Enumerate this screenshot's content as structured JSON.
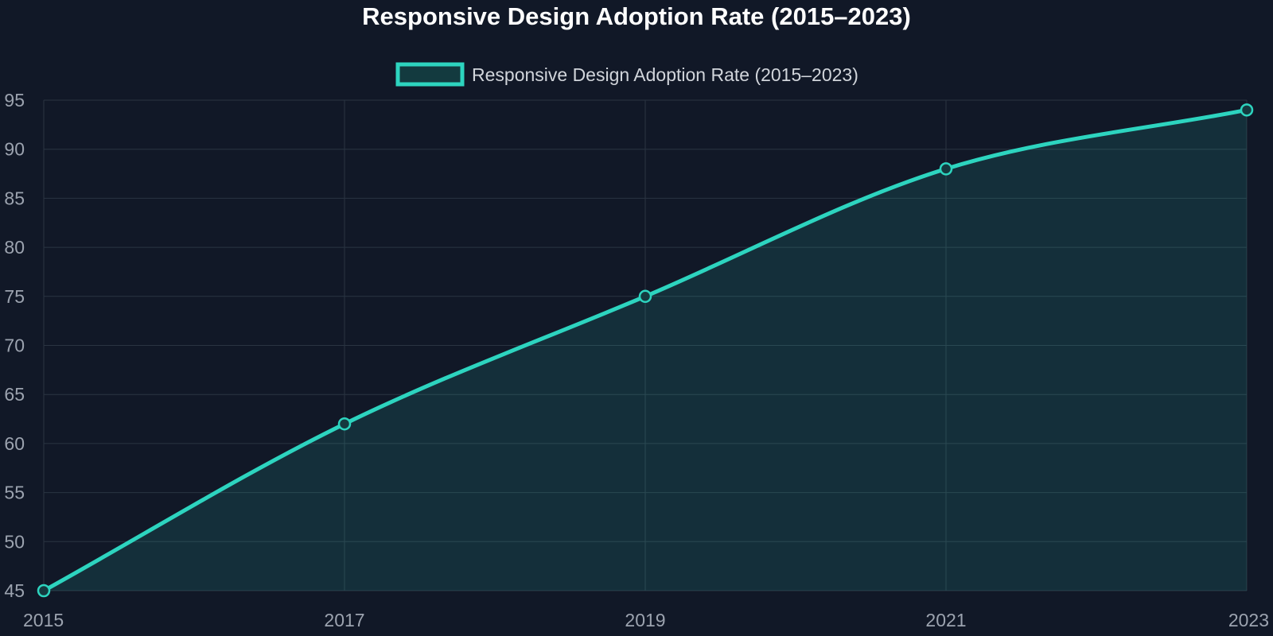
{
  "colors": {
    "background": "#111827",
    "line": "#2dd4bf",
    "fill": "rgba(45,212,191,0.13)",
    "grid": "#2a3442",
    "tick_text": "#9ca3af",
    "title_text": "#ffffff",
    "legend_text": "#d1d5db"
  },
  "chart_data": {
    "type": "area",
    "title": "Responsive Design Adoption Rate (2015–2023)",
    "xlabel": "",
    "ylabel": "",
    "x": [
      "2015",
      "2017",
      "2019",
      "2021",
      "2023"
    ],
    "series": [
      {
        "name": "Responsive Design Adoption Rate (2015–2023)",
        "values": [
          45,
          62,
          75,
          88,
          94
        ]
      }
    ],
    "ylim": [
      45,
      95
    ],
    "yticks": [
      "45",
      "50",
      "55",
      "60",
      "65",
      "70",
      "75",
      "80",
      "85",
      "90",
      "95"
    ],
    "grid": true,
    "legend_position": "top-center"
  }
}
